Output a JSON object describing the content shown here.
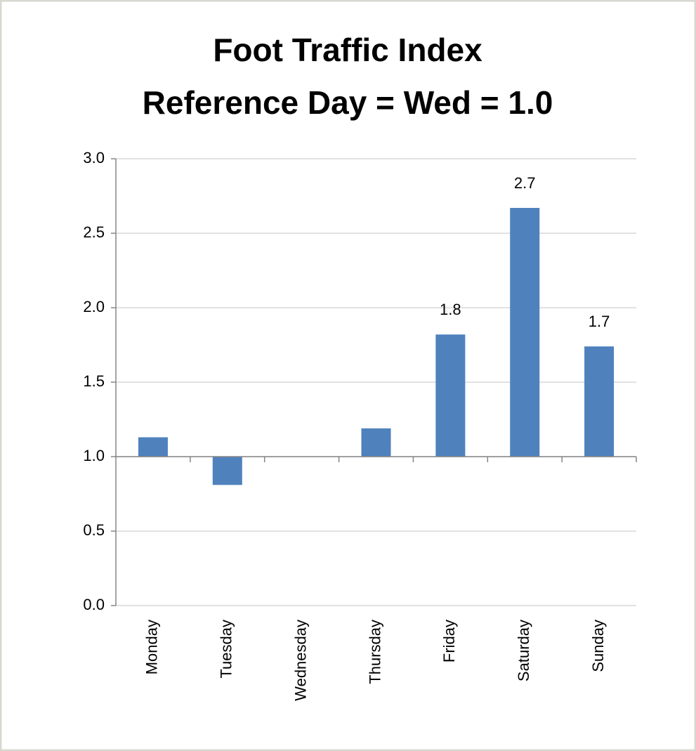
{
  "chart_data": {
    "type": "bar",
    "title": "Foot Traffic Index",
    "subtitle": "Reference Day = Wed = 1.0",
    "categories": [
      "Monday",
      "Tuesday",
      "Wednesday",
      "Thursday",
      "Friday",
      "Saturday",
      "Sunday"
    ],
    "values": [
      1.13,
      0.81,
      1.0,
      1.19,
      1.82,
      2.67,
      1.74
    ],
    "value_labels": [
      null,
      null,
      null,
      null,
      "1.8",
      "2.7",
      "1.7"
    ],
    "color": "#4f81bd",
    "baseline": 1,
    "ylim": [
      0,
      3
    ],
    "yticks": [
      {
        "value": 0,
        "label": "0.0"
      },
      0.5,
      {
        "value": 1,
        "label": "1.0"
      },
      1.5,
      {
        "value": 2,
        "label": "2.0"
      },
      2.5,
      {
        "value": 3,
        "label": "3.0"
      }
    ],
    "grid": true
  }
}
